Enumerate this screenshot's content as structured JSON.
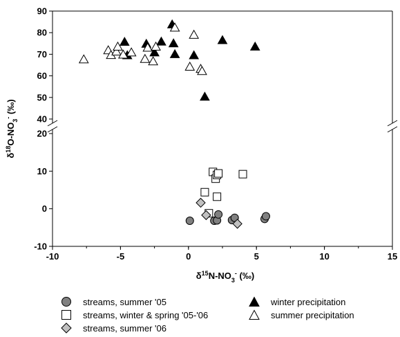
{
  "chart_data": {
    "type": "scatter",
    "xlabel": "δ15N-NO3- (‰)",
    "ylabel": "δ18O-NO3- (‰)",
    "xlim": [
      -10,
      15
    ],
    "x_ticks": [
      "-10",
      "-5",
      "0",
      "5",
      "10",
      "15"
    ],
    "y_ticks_upper": [
      "40",
      "50",
      "60",
      "70",
      "80",
      "90"
    ],
    "y_ticks_lower": [
      "-10",
      "0",
      "10",
      "20"
    ],
    "y_break": [
      20,
      40
    ],
    "grid": false,
    "legend_position": "bottom",
    "series": [
      {
        "name": "streams, summer '05",
        "marker": "circle",
        "fill": "#808080",
        "points": [
          [
            0.1,
            -3.2
          ],
          [
            1.9,
            -3.2
          ],
          [
            2.1,
            -3.1
          ],
          [
            2.2,
            -1.5
          ],
          [
            3.2,
            -3.0
          ],
          [
            3.4,
            -2.4
          ],
          [
            5.6,
            -2.7
          ],
          [
            5.7,
            -2.0
          ]
        ]
      },
      {
        "name": "streams, winter & spring '05-'06",
        "marker": "square",
        "fill": "#ffffff",
        "points": [
          [
            1.2,
            4.4
          ],
          [
            1.5,
            -1.2
          ],
          [
            1.8,
            9.8
          ],
          [
            2.0,
            8.0
          ],
          [
            2.1,
            9.0
          ],
          [
            2.2,
            9.4
          ],
          [
            2.1,
            3.2
          ],
          [
            4.0,
            9.2
          ]
        ]
      },
      {
        "name": "streams, summer '06",
        "marker": "diamond",
        "fill": "#c0c0c0",
        "points": [
          [
            0.9,
            1.6
          ],
          [
            1.3,
            -1.7
          ],
          [
            3.6,
            -4.0
          ]
        ]
      },
      {
        "name": "winter precipitation",
        "marker": "triangle",
        "fill": "#000000",
        "points": [
          [
            -4.7,
            75.7
          ],
          [
            -4.5,
            69.5
          ],
          [
            -3.1,
            74.8
          ],
          [
            -2.5,
            70.8
          ],
          [
            -2.0,
            75.8
          ],
          [
            -1.2,
            83.8
          ],
          [
            -1.1,
            75.0
          ],
          [
            -1.0,
            70.0
          ],
          [
            0.4,
            69.5
          ],
          [
            1.2,
            50.3
          ],
          [
            2.5,
            76.5
          ],
          [
            4.9,
            73.5
          ]
        ]
      },
      {
        "name": "summer precipitation",
        "marker": "triangle",
        "fill": "#ffffff",
        "points": [
          [
            -7.7,
            67.6
          ],
          [
            -5.9,
            71.8
          ],
          [
            -5.7,
            69.6
          ],
          [
            -5.3,
            71.2
          ],
          [
            -5.2,
            73.5
          ],
          [
            -4.8,
            69.8
          ],
          [
            -4.2,
            70.8
          ],
          [
            -3.2,
            67.8
          ],
          [
            -3.0,
            73.0
          ],
          [
            -2.6,
            66.7
          ],
          [
            -2.4,
            73.5
          ],
          [
            -1.0,
            82.3
          ],
          [
            0.1,
            64.2
          ],
          [
            0.4,
            79.0
          ],
          [
            0.9,
            63.2
          ],
          [
            1.0,
            62.2
          ]
        ]
      }
    ]
  },
  "legend": {
    "items": [
      "streams, summer '05",
      "streams, winter & spring '05-'06",
      "streams, summer '06",
      "winter precipitation",
      "summer precipitation"
    ]
  }
}
